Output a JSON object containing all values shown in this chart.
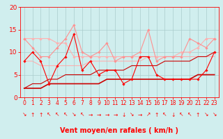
{
  "x": [
    0,
    1,
    2,
    3,
    4,
    5,
    6,
    7,
    8,
    9,
    10,
    11,
    12,
    13,
    14,
    15,
    16,
    17,
    18,
    19,
    20,
    21,
    22,
    23
  ],
  "series": [
    {
      "y": [
        8,
        10,
        8,
        3,
        7,
        9,
        14,
        6,
        8,
        5,
        6,
        6,
        3,
        4,
        9,
        9,
        5,
        4,
        4,
        4,
        4,
        4,
        6,
        10
      ],
      "color": "#FF0000",
      "lw": 0.8,
      "marker": "D",
      "ms": 1.8,
      "zorder": 5
    },
    {
      "y": [
        2,
        2,
        2,
        3,
        3,
        3,
        3,
        3,
        3,
        3,
        4,
        4,
        4,
        4,
        4,
        4,
        4,
        4,
        4,
        4,
        4,
        5,
        5,
        5
      ],
      "color": "#CC0000",
      "lw": 1.2,
      "marker": null,
      "ms": 0,
      "zorder": 4
    },
    {
      "y": [
        2,
        3,
        3,
        4,
        4,
        5,
        5,
        5,
        5,
        6,
        6,
        6,
        6,
        7,
        7,
        7,
        7,
        8,
        8,
        8,
        8,
        9,
        9,
        10
      ],
      "color": "#CC0000",
      "lw": 0.8,
      "marker": null,
      "ms": 0,
      "zorder": 3
    },
    {
      "y": [
        13,
        13,
        13,
        13,
        12,
        12,
        9,
        9,
        9,
        9,
        9,
        9,
        9,
        9,
        9,
        9,
        9,
        9,
        9,
        10,
        10,
        11,
        13,
        13
      ],
      "color": "#FFB0B0",
      "lw": 0.8,
      "marker": "D",
      "ms": 1.8,
      "zorder": 2
    },
    {
      "y": [
        8,
        8,
        7,
        7,
        7,
        7,
        7,
        7,
        8,
        8,
        8,
        8,
        8,
        8,
        8,
        9,
        9,
        9,
        9,
        9,
        9,
        9,
        9,
        9
      ],
      "color": "#FFB0B0",
      "lw": 0.8,
      "marker": null,
      "ms": 0,
      "zorder": 1
    },
    {
      "y": [
        13,
        11,
        9,
        9,
        11,
        13,
        16,
        10,
        9,
        10,
        12,
        8,
        9,
        9,
        10,
        15,
        8,
        9,
        9,
        9,
        13,
        12,
        11,
        13
      ],
      "color": "#FF9090",
      "lw": 0.8,
      "marker": "D",
      "ms": 1.8,
      "zorder": 3
    }
  ],
  "wind_arrows": [
    "↘",
    "↑",
    "↑",
    "↖",
    "↖",
    "↖",
    "↘",
    "↖",
    "→",
    "→",
    "→",
    "→",
    "↓",
    "↘",
    "→",
    "↗",
    "↑",
    "↖",
    "↓",
    "↖",
    "↖",
    "↑",
    "↘",
    "↘"
  ],
  "ylim": [
    0,
    20
  ],
  "xlim": [
    -0.5,
    23.5
  ],
  "yticks": [
    0,
    5,
    10,
    15,
    20
  ],
  "xticks": [
    0,
    1,
    2,
    3,
    4,
    5,
    6,
    7,
    8,
    9,
    10,
    11,
    12,
    13,
    14,
    15,
    16,
    17,
    18,
    19,
    20,
    21,
    22,
    23
  ],
  "xlabel": "Vent moyen/en rafales ( km/h )",
  "xlabel_color": "#FF0000",
  "bg_color": "#D0EEEE",
  "grid_color": "#AACCCC",
  "tick_color": "#FF0000",
  "arrow_color": "#FF0000",
  "xlabel_fontsize": 7,
  "ytick_fontsize": 6.5,
  "xtick_fontsize": 5.5,
  "arrow_fontsize": 5.5
}
